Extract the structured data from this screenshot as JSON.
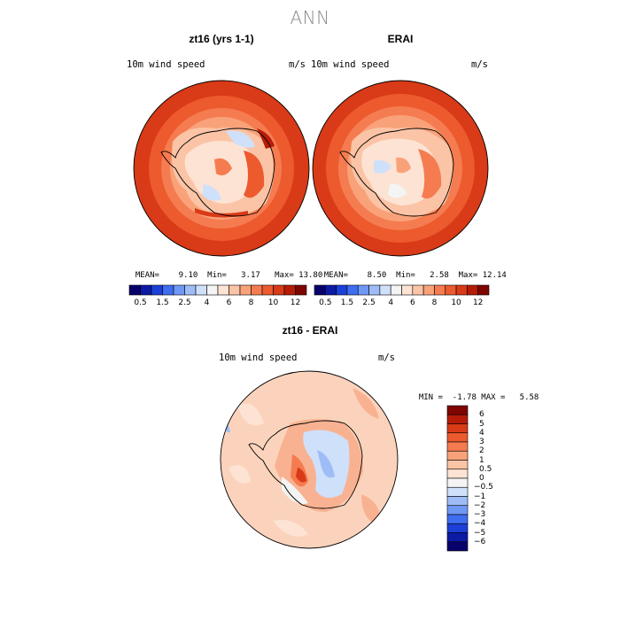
{
  "main_title": "ANN",
  "panels": [
    {
      "title": "zt16 (yrs 1-1)",
      "field_label": "10m wind speed",
      "units": "m/s",
      "stats": {
        "mean_label": "MEAN=",
        "mean": "9.10",
        "min_label": "Min=",
        "min": "3.17",
        "max_label": "Max=",
        "max": "13.80"
      }
    },
    {
      "title": "ERAI",
      "field_label": "10m wind speed",
      "units": "m/s",
      "stats": {
        "mean_label": "MEAN=",
        "mean": "8.50",
        "min_label": "Min=",
        "min": "2.58",
        "max_label": "Max=",
        "max": "12.14"
      }
    },
    {
      "title": "zt16 - ERAI",
      "field_label": "10m wind speed",
      "units": "m/s",
      "stats": {
        "min_label": "MIN =",
        "min": "-1.78",
        "max_label": "MAX =",
        "max": "5.58"
      }
    }
  ],
  "colorbar_abs": {
    "labels": [
      "0.5",
      "1.5",
      "2.5",
      "4",
      "6",
      "8",
      "10",
      "12"
    ],
    "colors": [
      "#08006b",
      "#0d1aa6",
      "#1c3fd8",
      "#3e6df0",
      "#6f98f5",
      "#9ebdf7",
      "#cfe0fa",
      "#f4f4f4",
      "#fde3d3",
      "#fbc4a6",
      "#f9a27a",
      "#f57c50",
      "#ec5a2e",
      "#d93a17",
      "#b51c08",
      "#7e0500"
    ]
  },
  "colorbar_diff": {
    "labels": [
      "6",
      "5",
      "4",
      "3",
      "2",
      "1",
      "0.5",
      "0",
      "−0.5",
      "−1",
      "−2",
      "−3",
      "−4",
      "−5",
      "−6"
    ],
    "colors": [
      "#7e0500",
      "#b51c08",
      "#d93a17",
      "#ec5a2e",
      "#f57c50",
      "#f9a27a",
      "#fbc4a6",
      "#fde3d3",
      "#f4f4f4",
      "#cfe0fa",
      "#9ebdf7",
      "#6f98f5",
      "#3e6df0",
      "#1c3fd8",
      "#0d1aa6",
      "#08006b"
    ]
  },
  "chart_data": [
    {
      "type": "heatmap",
      "title": "zt16 (yrs 1-1)",
      "variable": "10m wind speed",
      "units": "m/s",
      "mean": 9.1,
      "min": 3.17,
      "max": 13.8,
      "levels": [
        0.5,
        1.5,
        2.5,
        4,
        6,
        8,
        10,
        12
      ]
    },
    {
      "type": "heatmap",
      "title": "ERAI",
      "variable": "10m wind speed",
      "units": "m/s",
      "mean": 8.5,
      "min": 2.58,
      "max": 12.14,
      "levels": [
        0.5,
        1.5,
        2.5,
        4,
        6,
        8,
        10,
        12
      ]
    },
    {
      "type": "heatmap",
      "title": "zt16 - ERAI",
      "variable": "10m wind speed",
      "units": "m/s",
      "min": -1.78,
      "max": 5.58,
      "levels": [
        -6,
        -5,
        -4,
        -3,
        -2,
        -1,
        -0.5,
        0,
        0.5,
        1,
        2,
        3,
        4,
        5,
        6
      ]
    }
  ]
}
